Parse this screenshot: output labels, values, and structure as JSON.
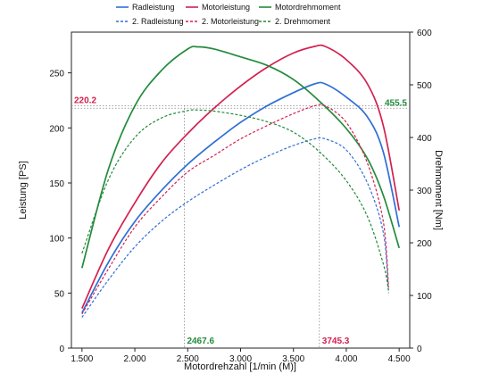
{
  "chart_data": {
    "type": "line",
    "xlabel": "Motordrehzahl [1/min (M)]",
    "ylabel_left": "Leistung [PS]",
    "ylabel_right": "Drehmoment [Nm]",
    "x_ticks": [
      "1.500",
      "2.000",
      "2.500",
      "3.000",
      "3.500",
      "4.000",
      "4.500"
    ],
    "x_tick_values": [
      1500,
      2000,
      2500,
      3000,
      3500,
      4000,
      4500
    ],
    "y_left_ticks": [
      "0",
      "50",
      "100",
      "150",
      "200",
      "250"
    ],
    "y_left_tick_values": [
      0,
      50,
      100,
      150,
      200,
      250
    ],
    "y_right_ticks": [
      "0",
      "100",
      "200",
      "300",
      "400",
      "500",
      "600"
    ],
    "y_right_tick_values": [
      0,
      100,
      200,
      300,
      400,
      500,
      600
    ],
    "xlim": [
      1400,
      4600
    ],
    "ylim_left": [
      0,
      287
    ],
    "ylim_right": [
      0,
      600
    ],
    "grid": false,
    "legend_position": "top",
    "series": [
      {
        "name": "Radleistung",
        "axis": "left",
        "color": "#2e6fd6",
        "dash": "solid",
        "x": [
          1500,
          1750,
          2000,
          2250,
          2500,
          2750,
          3000,
          3250,
          3500,
          3700,
          3800,
          4000,
          4200,
          4350,
          4500
        ],
        "y": [
          32,
          78,
          115,
          143,
          167,
          187,
          205,
          220,
          232,
          240,
          240,
          228,
          210,
          178,
          110
        ]
      },
      {
        "name": "Motorleistung",
        "axis": "left",
        "color": "#d4204f",
        "dash": "solid",
        "x": [
          1500,
          1750,
          2000,
          2250,
          2500,
          2750,
          3000,
          3250,
          3500,
          3700,
          3800,
          4000,
          4200,
          4350,
          4500
        ],
        "y": [
          36,
          90,
          132,
          168,
          195,
          218,
          238,
          255,
          268,
          274,
          274,
          262,
          240,
          202,
          125
        ]
      },
      {
        "name": "Motordrehmoment",
        "axis": "right",
        "color": "#228b3c",
        "dash": "solid",
        "x": [
          1500,
          1750,
          2000,
          2250,
          2500,
          2600,
          2750,
          3000,
          3250,
          3500,
          3750,
          4000,
          4200,
          4350,
          4500
        ],
        "y": [
          152,
          340,
          460,
          527,
          568,
          572,
          568,
          553,
          537,
          510,
          468,
          417,
          360,
          290,
          190
        ]
      },
      {
        "name": "2. Radleistung",
        "axis": "left",
        "color": "#2e6fd6",
        "dash": "dashed",
        "x": [
          1500,
          1750,
          2000,
          2250,
          2500,
          2750,
          3000,
          3250,
          3500,
          3700,
          3800,
          4000,
          4200,
          4350,
          4400
        ],
        "y": [
          28,
          62,
          92,
          115,
          133,
          148,
          162,
          174,
          184,
          190,
          190,
          180,
          150,
          105,
          50
        ]
      },
      {
        "name": "2. Motorleistung",
        "axis": "left",
        "color": "#d4204f",
        "dash": "dashed",
        "x": [
          1500,
          1750,
          2000,
          2250,
          2500,
          2750,
          3000,
          3250,
          3500,
          3700,
          3800,
          4000,
          4200,
          4350,
          4400
        ],
        "y": [
          31,
          72,
          110,
          137,
          160,
          175,
          190,
          202,
          213,
          220,
          220,
          205,
          168,
          115,
          55
        ]
      },
      {
        "name": "2. Drehmoment",
        "axis": "right",
        "color": "#228b3c",
        "dash": "dashed",
        "x": [
          1500,
          1750,
          2000,
          2250,
          2500,
          2600,
          2750,
          3000,
          3250,
          3500,
          3750,
          4000,
          4200,
          4350,
          4400
        ],
        "y": [
          180,
          320,
          400,
          437,
          451,
          452,
          450,
          442,
          430,
          410,
          372,
          318,
          250,
          160,
          110
        ]
      }
    ],
    "annotations": [
      {
        "axis": "left",
        "orientation": "horizontal",
        "y": 220.2,
        "text": "220.2",
        "color": "#d4204f",
        "label_side": "left"
      },
      {
        "axis": "right",
        "orientation": "horizontal",
        "y": 455.5,
        "text": "455.5",
        "color": "#228b3c",
        "label_side": "right"
      },
      {
        "orientation": "vertical",
        "x": 2467.6,
        "text": "2467.6",
        "color": "#228b3c"
      },
      {
        "orientation": "vertical",
        "x": 3745.3,
        "text": "3745.3",
        "color": "#d4204f"
      }
    ]
  }
}
